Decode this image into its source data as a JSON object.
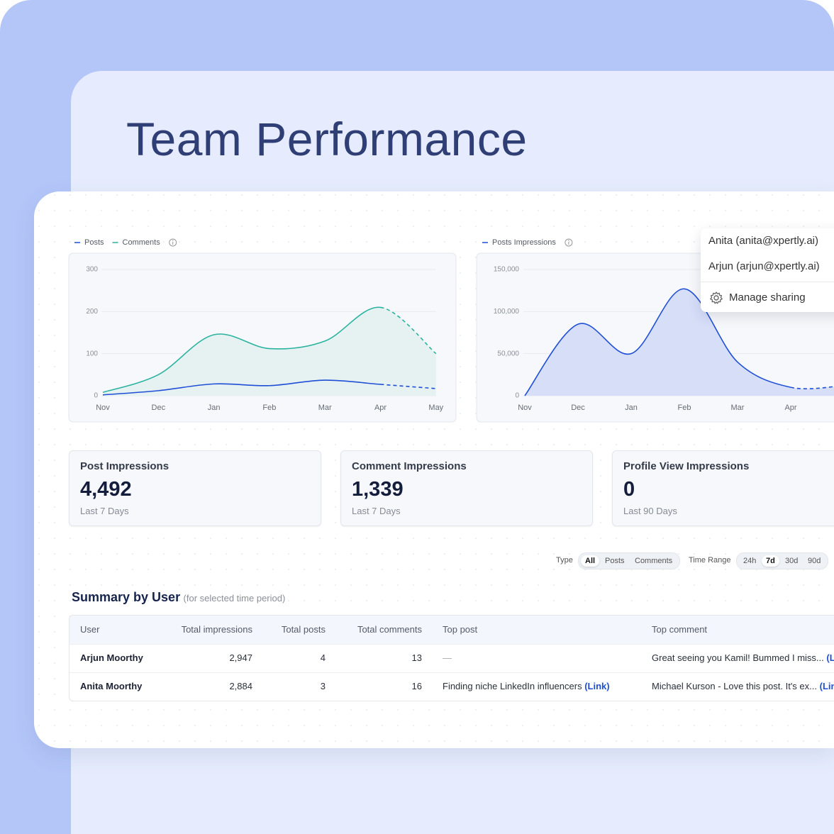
{
  "title": "Team Performance",
  "chart_data": [
    {
      "type": "line",
      "categories": [
        "Nov",
        "Dec",
        "Jan",
        "Feb",
        "Mar",
        "Apr",
        "May"
      ],
      "series": [
        {
          "name": "Posts",
          "color": "#1f4fd6",
          "values": [
            2,
            12,
            28,
            24,
            37,
            27,
            17
          ]
        },
        {
          "name": "Comments",
          "color": "#2ab3a0",
          "fill": "#e6f2f1",
          "values": [
            8,
            50,
            145,
            112,
            130,
            210,
            100
          ]
        }
      ],
      "ylim": [
        0,
        300
      ],
      "yticks": [
        0,
        100,
        200,
        300
      ],
      "grid": true,
      "dashed_from": 5
    },
    {
      "type": "line",
      "categories": [
        "Nov",
        "Dec",
        "Jan",
        "Feb",
        "Mar",
        "Apr",
        null
      ],
      "series": [
        {
          "name": "Posts Impressions",
          "color": "#1f4fd6",
          "fill": "#d6def8",
          "values": [
            0,
            85000,
            50000,
            127000,
            40000,
            10000,
            12000
          ]
        }
      ],
      "ylim": [
        0,
        150000
      ],
      "yticks": [
        0,
        {
          "value": 50000,
          "label": "50,000"
        },
        {
          "value": 100000,
          "label": "100,000"
        },
        {
          "value": 150000,
          "label": "150,000"
        }
      ],
      "grid": true,
      "dashed_from": 5
    }
  ],
  "sharing_menu": {
    "users": [
      "Anita (anita@xpertly.ai)",
      "Arjun (arjun@xpertly.ai)"
    ],
    "action": "Manage sharing"
  },
  "stats": [
    {
      "label": "Post Impressions",
      "value": "4,492",
      "period": "Last 7 Days"
    },
    {
      "label": "Comment Impressions",
      "value": "1,339",
      "period": "Last 7 Days"
    },
    {
      "label": "Profile View Impressions",
      "value": "0",
      "period": "Last 90 Days"
    }
  ],
  "filters": [
    {
      "label": "Type",
      "options": [
        "All",
        "Posts",
        "Comments"
      ],
      "selected": 0
    },
    {
      "label": "Time Range",
      "options": [
        "24h",
        "7d",
        "30d",
        "90d"
      ],
      "selected": 1
    }
  ],
  "summary": {
    "title": "Summary by User",
    "note": "(for selected time period)",
    "columns": [
      "User",
      "Total impressions",
      "Total posts",
      "Total comments",
      "Top post",
      "Top comment"
    ],
    "rows": [
      [
        "Arjun Moorthy",
        "2,947",
        "4",
        "13",
        {
          "text": "—"
        },
        {
          "text": "Great seeing you Kamil! Bummed I miss...",
          "link": "(Link)"
        }
      ],
      [
        "Anita Moorthy",
        "2,884",
        "3",
        "16",
        {
          "text": "Finding niche LinkedIn influencers",
          "link": "(Link)"
        },
        {
          "text": "Michael Kurson - Love this post. It's ex...",
          "link": "(Link)"
        }
      ]
    ]
  }
}
